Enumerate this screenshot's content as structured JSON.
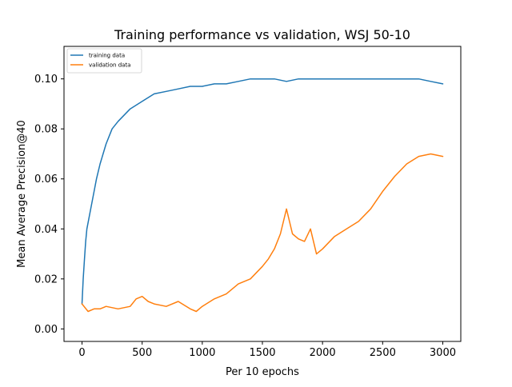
{
  "chart_data": {
    "type": "line",
    "title": "Training performance vs validation, WSJ 50-10",
    "xlabel": "Per 10 epochs",
    "ylabel": "Mean Average Precision@40",
    "xlim": [
      -150,
      3150
    ],
    "ylim": [
      -0.005,
      0.113
    ],
    "x_ticks": [
      0,
      500,
      1000,
      1500,
      2000,
      2500,
      3000
    ],
    "y_ticks": [
      0.0,
      0.02,
      0.04,
      0.06,
      0.08,
      0.1
    ],
    "x_tick_labels": [
      "0",
      "500",
      "1000",
      "1500",
      "2000",
      "2500",
      "3000"
    ],
    "y_tick_labels": [
      "0.00",
      "0.02",
      "0.04",
      "0.06",
      "0.08",
      "0.10"
    ],
    "grid": false,
    "legend": "top-left",
    "series": [
      {
        "name": "training data",
        "color": "#1f77b4",
        "x": [
          0,
          10,
          20,
          30,
          40,
          60,
          80,
          100,
          120,
          150,
          200,
          250,
          300,
          400,
          500,
          600,
          700,
          800,
          900,
          1000,
          1100,
          1200,
          1300,
          1400,
          1500,
          1600,
          1700,
          1800,
          1900,
          2000,
          2100,
          2200,
          2300,
          2400,
          2500,
          2600,
          2700,
          2800,
          2900,
          3000
        ],
        "values": [
          0.01,
          0.02,
          0.028,
          0.035,
          0.04,
          0.045,
          0.05,
          0.055,
          0.06,
          0.066,
          0.074,
          0.08,
          0.083,
          0.088,
          0.091,
          0.094,
          0.095,
          0.096,
          0.097,
          0.097,
          0.098,
          0.098,
          0.099,
          0.1,
          0.1,
          0.1,
          0.099,
          0.1,
          0.1,
          0.1,
          0.1,
          0.1,
          0.1,
          0.1,
          0.1,
          0.1,
          0.1,
          0.1,
          0.099,
          0.098
        ]
      },
      {
        "name": "validation data",
        "color": "#ff7f0e",
        "x": [
          0,
          50,
          100,
          150,
          200,
          300,
          400,
          450,
          500,
          550,
          600,
          700,
          800,
          900,
          950,
          1000,
          1100,
          1200,
          1300,
          1400,
          1500,
          1550,
          1600,
          1650,
          1700,
          1750,
          1800,
          1850,
          1900,
          1950,
          2000,
          2100,
          2200,
          2300,
          2400,
          2500,
          2600,
          2700,
          2800,
          2900,
          3000
        ],
        "values": [
          0.01,
          0.007,
          0.008,
          0.008,
          0.009,
          0.008,
          0.009,
          0.012,
          0.013,
          0.011,
          0.01,
          0.009,
          0.011,
          0.008,
          0.007,
          0.009,
          0.012,
          0.014,
          0.018,
          0.02,
          0.025,
          0.028,
          0.032,
          0.038,
          0.048,
          0.038,
          0.036,
          0.035,
          0.04,
          0.03,
          0.032,
          0.037,
          0.04,
          0.043,
          0.048,
          0.055,
          0.061,
          0.066,
          0.069,
          0.07,
          0.069
        ]
      }
    ]
  }
}
